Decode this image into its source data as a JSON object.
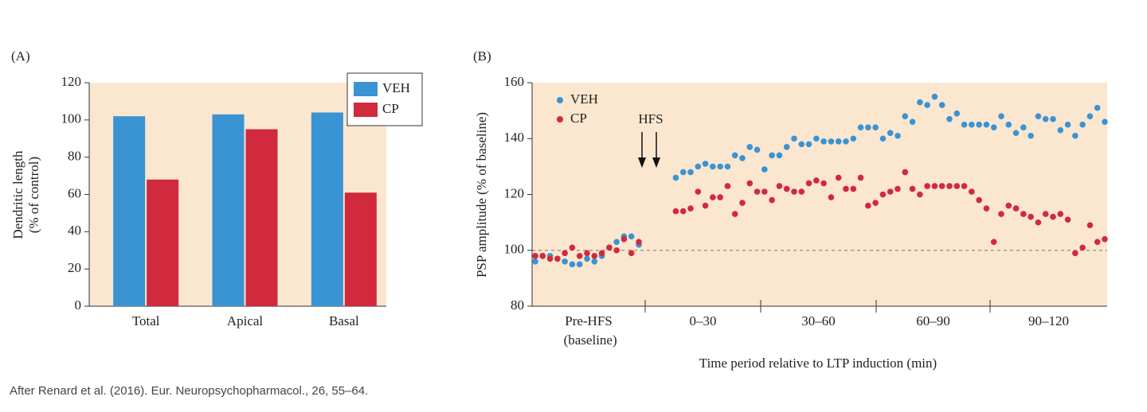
{
  "chart_data": [
    {
      "type": "bar",
      "panel": "(A)",
      "y_label": [
        "Dendritic length",
        "(% of control)"
      ],
      "categories": [
        "Total",
        "Apical",
        "Basal"
      ],
      "series": [
        {
          "name": "VEH",
          "color": "#3a93d2",
          "values": [
            102,
            103,
            104
          ]
        },
        {
          "name": "CP",
          "color": "#d1293d",
          "values": [
            68,
            95,
            61
          ]
        }
      ],
      "ylim": [
        0,
        120
      ],
      "yticks": [
        0,
        20,
        40,
        60,
        80,
        100,
        120
      ],
      "legend": "upper right",
      "background": "#fbe6cf"
    },
    {
      "type": "scatter",
      "panel": "(B)",
      "y_label": "PSP amplitude (% of baseline)",
      "x_label": "Time period relative to LTP induction (min)",
      "categories": [
        "Pre-HFS (baseline)",
        "0–30",
        "30–60",
        "60–90",
        "90–120"
      ],
      "annotation": "HFS",
      "reference_line": 100,
      "series": [
        {
          "name": "VEH",
          "color": "#3a93d2",
          "values": [
            96,
            98,
            98,
            97,
            96,
            95,
            95,
            97,
            96,
            98,
            101,
            103,
            105,
            105,
            102,
            null,
            null,
            null,
            null,
            126,
            128,
            128,
            130,
            131,
            130,
            130,
            130,
            134,
            133,
            137,
            136,
            129,
            134,
            134,
            137,
            140,
            138,
            138,
            140,
            139,
            139,
            139,
            139,
            140,
            144,
            144,
            144,
            140,
            142,
            141,
            148,
            146,
            153,
            152,
            155,
            152,
            147,
            149,
            145,
            145,
            145,
            145,
            144,
            148,
            145,
            142,
            144,
            141,
            148,
            147,
            147,
            143,
            145,
            141,
            145,
            148,
            151,
            146
          ]
        },
        {
          "name": "CP",
          "color": "#d1293d",
          "values": [
            98,
            98,
            97,
            97,
            99,
            101,
            98,
            99,
            98,
            99,
            101,
            100,
            104,
            99,
            103,
            null,
            null,
            null,
            null,
            114,
            114,
            115,
            121,
            116,
            119,
            119,
            123,
            113,
            117,
            124,
            121,
            121,
            118,
            123,
            122,
            121,
            121,
            124,
            125,
            124,
            119,
            126,
            122,
            122,
            126,
            116,
            117,
            120,
            121,
            122,
            128,
            122,
            120,
            123,
            123,
            123,
            123,
            123,
            123,
            121,
            118,
            115,
            103,
            113,
            116,
            115,
            113,
            112,
            110,
            113,
            112,
            113,
            111,
            99,
            101,
            109,
            103,
            104
          ]
        }
      ],
      "ylim": [
        80,
        160
      ],
      "yticks": [
        80,
        100,
        120,
        140,
        160
      ],
      "legend": "upper left",
      "background": "#fbe6cf"
    }
  ],
  "source": "After Renard et al. (2016). Eur. Neuropsychopharmacol., 26, 55–64."
}
